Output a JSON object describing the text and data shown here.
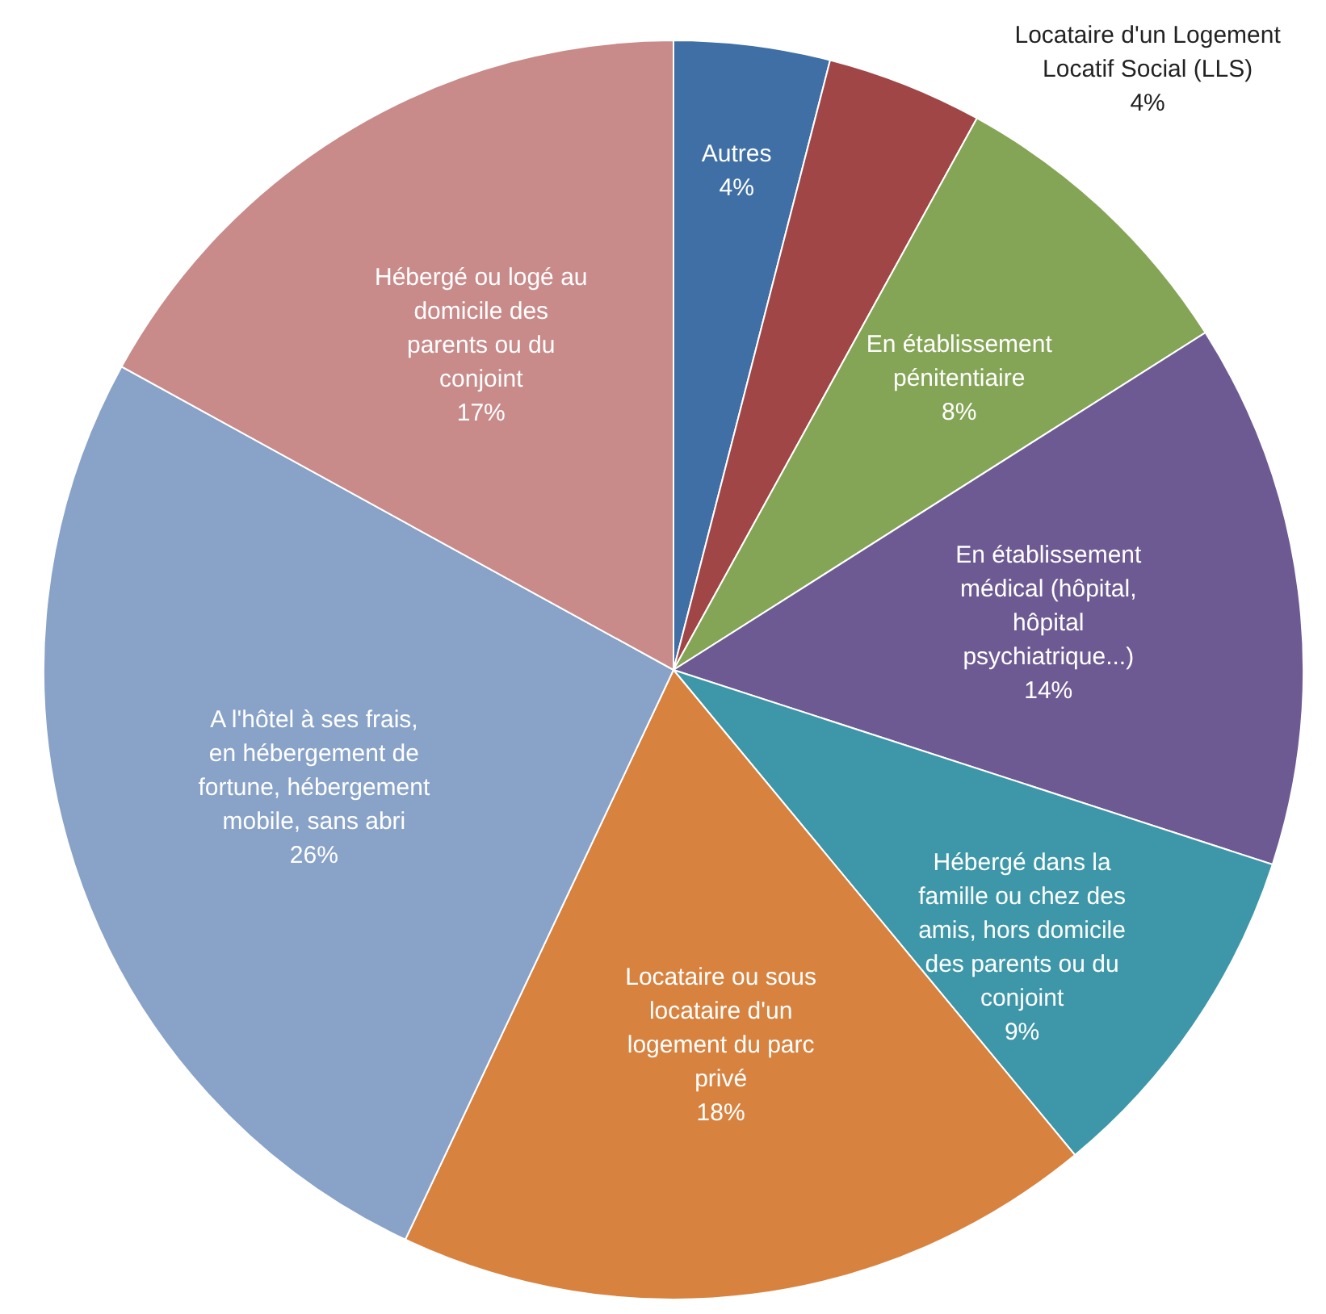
{
  "chart_data": {
    "type": "pie",
    "categories": [
      "Autres",
      "Locataire d'un Logement Locatif Social (LLS)",
      "En établissement pénitentiaire",
      "En établissement médical (hôpital, hôpital psychiatrique...)",
      "Hébergé dans la famille ou chez des amis, hors domicile des parents ou du conjoint",
      "Locataire ou sous locataire d'un logement du parc privé",
      "A l'hôtel à ses frais, en hébergement de fortune, hébergement mobile, sans abri",
      "Hébergé ou logé au domicile des parents ou du conjoint"
    ],
    "values": [
      4,
      4,
      8,
      14,
      9,
      18,
      26,
      17
    ],
    "value_labels": [
      "4%",
      "4%",
      "8%",
      "14%",
      "9%",
      "18%",
      "26%",
      "17%"
    ],
    "colors": [
      "#3f6fa5",
      "#a04646",
      "#84a556",
      "#6e5a93",
      "#3d97a8",
      "#d8823f",
      "#88a2c8",
      "#c98a8a"
    ],
    "legend": false
  }
}
